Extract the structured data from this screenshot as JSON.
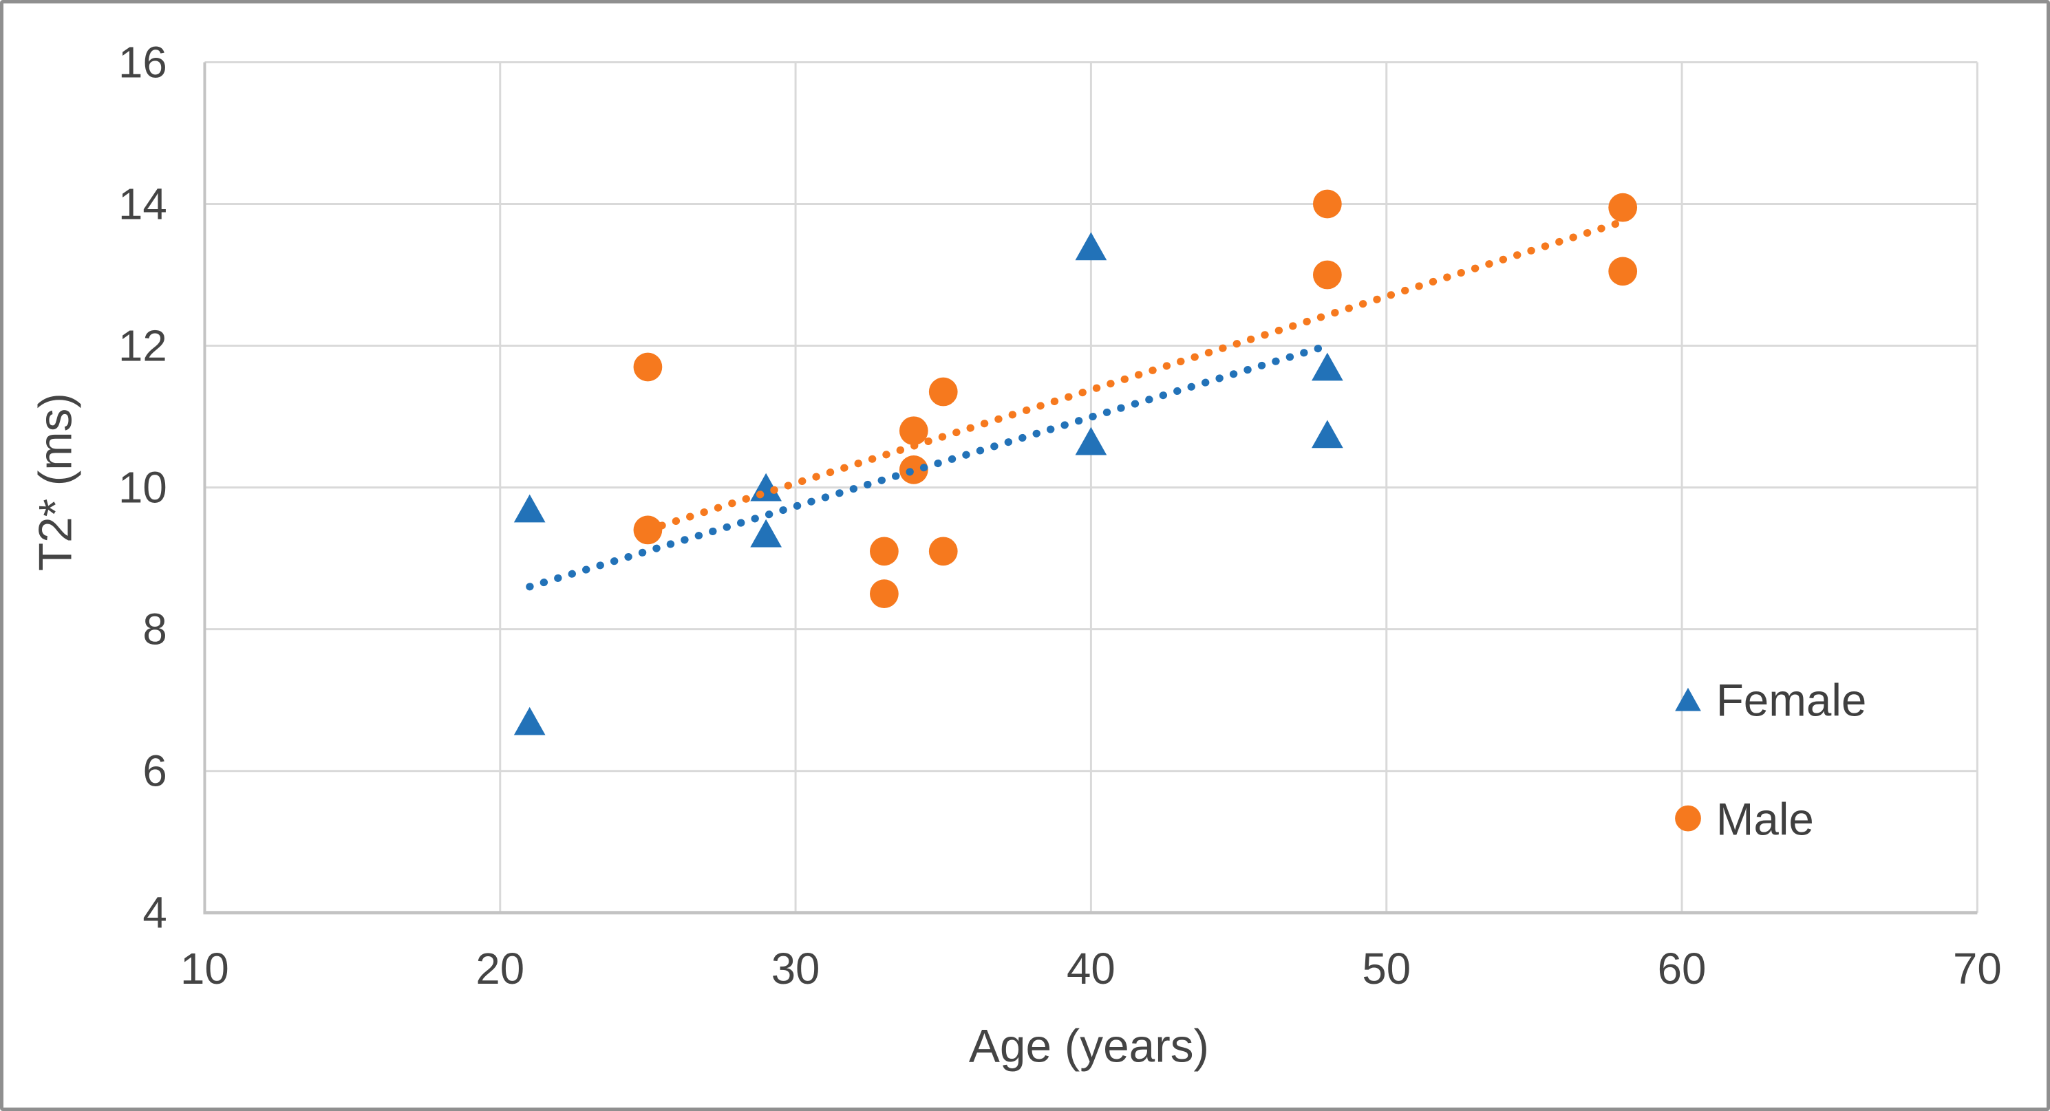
{
  "figure": {
    "background": "#ffffff",
    "border_color": "#8f8f8f"
  },
  "chart_data": {
    "type": "scatter",
    "title": "",
    "xlabel": "Age (years)",
    "ylabel": "T2* (ms)",
    "xlim": [
      10,
      70
    ],
    "ylim": [
      4,
      16
    ],
    "x_ticks": [
      10,
      20,
      30,
      40,
      50,
      60,
      70
    ],
    "y_ticks": [
      4,
      6,
      8,
      10,
      12,
      14,
      16
    ],
    "grid": true,
    "legend_position": "inside-right",
    "colors": {
      "female": "#2272b8",
      "male": "#f6791e",
      "gridline": "#d9d9d9",
      "axis_line": "#c3c3c3",
      "tick_text": "#444444",
      "legend_text": "#3f3f3f"
    },
    "series": [
      {
        "name": "Female",
        "marker": "triangle",
        "color": "#2272b8",
        "points": [
          [
            21,
            9.7
          ],
          [
            21,
            6.7
          ],
          [
            29,
            10.0
          ],
          [
            29,
            9.35
          ],
          [
            40,
            13.4
          ],
          [
            40,
            10.65
          ],
          [
            48,
            11.7
          ],
          [
            48,
            10.75
          ]
        ],
        "trendline": {
          "style": "dotted",
          "x1": 21,
          "y1": 8.6,
          "x2": 48,
          "y2": 12.0
        }
      },
      {
        "name": "Male",
        "marker": "circle",
        "color": "#f6791e",
        "points": [
          [
            25,
            11.7
          ],
          [
            25,
            9.4
          ],
          [
            33,
            9.1
          ],
          [
            33,
            8.5
          ],
          [
            34,
            10.8
          ],
          [
            34,
            10.25
          ],
          [
            35,
            11.35
          ],
          [
            35,
            9.1
          ],
          [
            48,
            14.0
          ],
          [
            48,
            13.0
          ],
          [
            58,
            13.95
          ],
          [
            58,
            13.05
          ]
        ],
        "trendline": {
          "style": "dotted",
          "x1": 25,
          "y1": 9.4,
          "x2": 58,
          "y2": 13.75
        }
      }
    ]
  }
}
